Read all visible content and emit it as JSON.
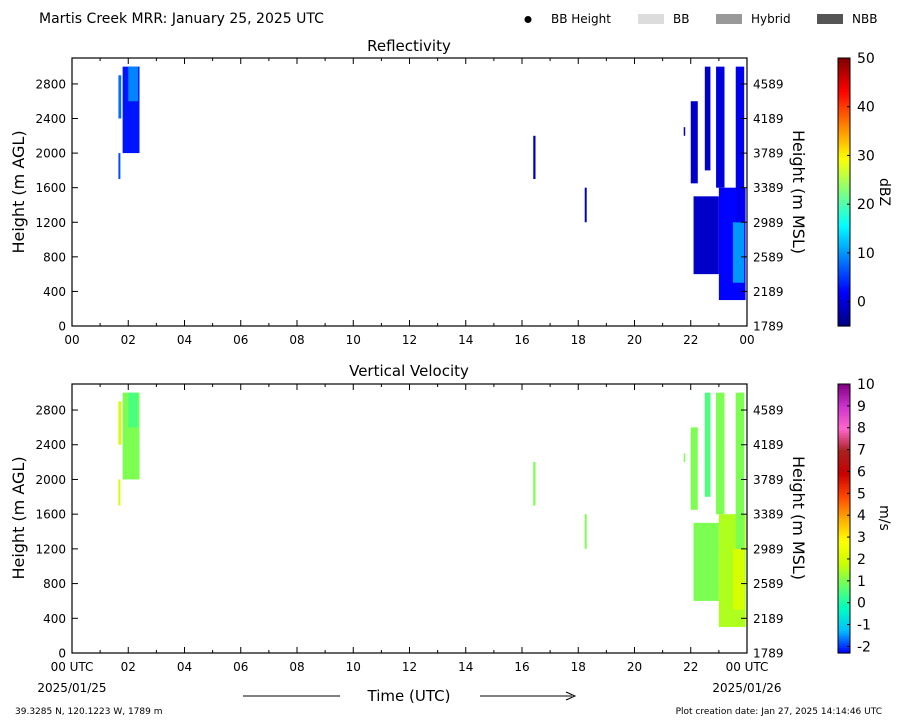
{
  "header": {
    "title": "Martis Creek MRR:  January 25, 2025 UTC",
    "legend": [
      {
        "label": "BB Height",
        "kind": "dot",
        "color": "#000000"
      },
      {
        "label": "BB",
        "kind": "box",
        "color": "#dcdcdc"
      },
      {
        "label": "Hybrid",
        "kind": "box",
        "color": "#999999"
      },
      {
        "label": "NBB",
        "kind": "box",
        "color": "#555555"
      }
    ]
  },
  "footer": {
    "location": "39.3285 N, 120.1223 W, 1789 m",
    "creation": "Plot creation date: Jan 27, 2025 14:14:46 UTC",
    "xlabel": "Time (UTC)",
    "start_date": "2025/01/25",
    "end_date": "2025/01/26"
  },
  "chart_data": [
    {
      "type": "heatmap",
      "title": "Reflectivity",
      "ylabel": "Height (m AGL)",
      "y2label": "Height (m MSL)",
      "x_ticks": [
        "00",
        "02",
        "04",
        "06",
        "08",
        "10",
        "12",
        "14",
        "16",
        "18",
        "20",
        "22",
        "00"
      ],
      "y_ticks": [
        0,
        400,
        800,
        1200,
        1600,
        2000,
        2400,
        2800
      ],
      "y2_ticks": [
        1789,
        2189,
        2589,
        2989,
        3389,
        3789,
        4189,
        4589
      ],
      "xlim": [
        0,
        24
      ],
      "ylim": [
        0,
        3100
      ],
      "colorbar": {
        "label": "dBZ",
        "range": [
          -5,
          50
        ],
        "ticks": [
          0,
          10,
          20,
          30,
          40,
          50
        ],
        "colors": [
          "#00007f",
          "#0000ff",
          "#007fff",
          "#00ffff",
          "#7fff7f",
          "#ffff00",
          "#ff7f00",
          "#ff0000",
          "#7f0000"
        ]
      },
      "echoes": [
        {
          "x0": 1.65,
          "x1": 1.72,
          "y0": 1700,
          "y1": 2000,
          "value": 6
        },
        {
          "x0": 1.65,
          "x1": 1.75,
          "y0": 2400,
          "y1": 2900,
          "value": 8
        },
        {
          "x0": 1.8,
          "x1": 2.4,
          "y0": 2000,
          "y1": 3000,
          "value": 3
        },
        {
          "x0": 2.0,
          "x1": 2.35,
          "y0": 2600,
          "y1": 3000,
          "value": 9
        },
        {
          "x0": 16.4,
          "x1": 16.48,
          "y0": 1700,
          "y1": 2200,
          "value": -2
        },
        {
          "x0": 18.23,
          "x1": 18.3,
          "y0": 1200,
          "y1": 1600,
          "value": -2
        },
        {
          "x0": 21.75,
          "x1": 21.8,
          "y0": 2200,
          "y1": 2300,
          "value": -1
        },
        {
          "x0": 22.0,
          "x1": 22.25,
          "y0": 1650,
          "y1": 2600,
          "value": -1
        },
        {
          "x0": 22.1,
          "x1": 23.0,
          "y0": 600,
          "y1": 1500,
          "value": -1
        },
        {
          "x0": 22.5,
          "x1": 22.7,
          "y0": 1800,
          "y1": 3000,
          "value": -1
        },
        {
          "x0": 22.9,
          "x1": 23.2,
          "y0": 1600,
          "y1": 3000,
          "value": 0
        },
        {
          "x0": 23.0,
          "x1": 23.95,
          "y0": 300,
          "y1": 1600,
          "value": 2
        },
        {
          "x0": 23.5,
          "x1": 23.9,
          "y0": 500,
          "y1": 1200,
          "value": 10
        },
        {
          "x0": 23.6,
          "x1": 23.9,
          "y0": 1200,
          "y1": 3000,
          "value": 1
        }
      ]
    },
    {
      "type": "heatmap",
      "title": "Vertical Velocity",
      "ylabel": "Height (m AGL)",
      "y2label": "Height (m MSL)",
      "x_ticks": [
        "00 UTC",
        "02",
        "04",
        "06",
        "08",
        "10",
        "12",
        "14",
        "16",
        "18",
        "20",
        "22",
        "00 UTC"
      ],
      "y_ticks": [
        0,
        400,
        800,
        1200,
        1600,
        2000,
        2400,
        2800
      ],
      "y2_ticks": [
        1789,
        2189,
        2589,
        2989,
        3389,
        3789,
        4189,
        4589
      ],
      "xlim": [
        0,
        24
      ],
      "ylim": [
        0,
        3100
      ],
      "colorbar": {
        "label": "m/s",
        "range": [
          -2.3,
          10
        ],
        "ticks": [
          -2,
          -1,
          0,
          1,
          2,
          3,
          4,
          5,
          6,
          7,
          8,
          9,
          10
        ],
        "colors": [
          "#0000ff",
          "#00bfff",
          "#00ffc0",
          "#66ff66",
          "#ccff00",
          "#ffff00",
          "#ffaa00",
          "#ff4400",
          "#c80000",
          "#aa2020",
          "#ff66cc",
          "#cc33cc",
          "#800080"
        ]
      },
      "echoes": [
        {
          "x0": 1.65,
          "x1": 1.72,
          "y0": 1700,
          "y1": 2000,
          "value": 2
        },
        {
          "x0": 1.65,
          "x1": 1.75,
          "y0": 2400,
          "y1": 2900,
          "value": 2
        },
        {
          "x0": 1.8,
          "x1": 2.4,
          "y0": 2000,
          "y1": 3000,
          "value": 1
        },
        {
          "x0": 2.0,
          "x1": 2.35,
          "y0": 2600,
          "y1": 3000,
          "value": 0.5
        },
        {
          "x0": 16.4,
          "x1": 16.48,
          "y0": 1700,
          "y1": 2200,
          "value": 1
        },
        {
          "x0": 18.23,
          "x1": 18.3,
          "y0": 1200,
          "y1": 1600,
          "value": 1
        },
        {
          "x0": 21.75,
          "x1": 21.8,
          "y0": 2200,
          "y1": 2300,
          "value": 1
        },
        {
          "x0": 22.0,
          "x1": 22.25,
          "y0": 1650,
          "y1": 2600,
          "value": 1
        },
        {
          "x0": 22.1,
          "x1": 23.0,
          "y0": 600,
          "y1": 1500,
          "value": 1
        },
        {
          "x0": 22.5,
          "x1": 22.7,
          "y0": 1800,
          "y1": 3000,
          "value": 0.5
        },
        {
          "x0": 22.9,
          "x1": 23.2,
          "y0": 1600,
          "y1": 3000,
          "value": 1
        },
        {
          "x0": 23.0,
          "x1": 23.95,
          "y0": 300,
          "y1": 1600,
          "value": 1.5
        },
        {
          "x0": 23.5,
          "x1": 23.9,
          "y0": 500,
          "y1": 1200,
          "value": 2
        },
        {
          "x0": 23.6,
          "x1": 23.9,
          "y0": 1200,
          "y1": 3000,
          "value": 1
        }
      ]
    }
  ]
}
